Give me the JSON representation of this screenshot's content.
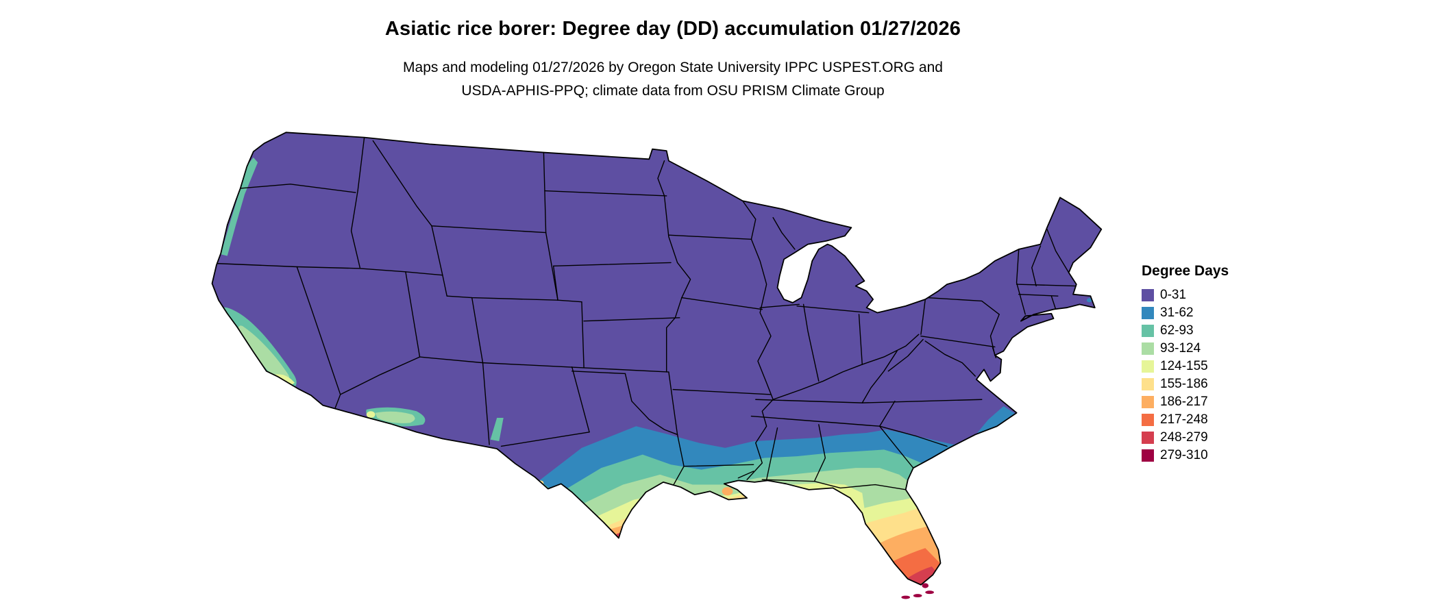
{
  "title": "Asiatic rice borer: Degree day (DD) accumulation 01/27/2026",
  "subtitle_line1": "Maps and modeling 01/27/2026 by Oregon State University IPPC USPEST.ORG and",
  "subtitle_line2": "USDA-APHIS-PPQ; climate data from OSU PRISM Climate Group",
  "legend": {
    "title": "Degree Days",
    "items": [
      {
        "label": "0-31",
        "color": "#5e4fa2"
      },
      {
        "label": "31-62",
        "color": "#3288bd"
      },
      {
        "label": "62-93",
        "color": "#66c2a5"
      },
      {
        "label": "93-124",
        "color": "#abdda4"
      },
      {
        "label": "124-155",
        "color": "#e6f598"
      },
      {
        "label": "155-186",
        "color": "#fee08b"
      },
      {
        "label": "186-217",
        "color": "#fdae61"
      },
      {
        "label": "217-248",
        "color": "#f46d43"
      },
      {
        "label": "248-279",
        "color": "#d53e4f"
      },
      {
        "label": "279-310",
        "color": "#9e0142"
      }
    ]
  },
  "map": {
    "region": "Continental United States",
    "border_color": "#000000",
    "background_color": "#ffffff"
  }
}
